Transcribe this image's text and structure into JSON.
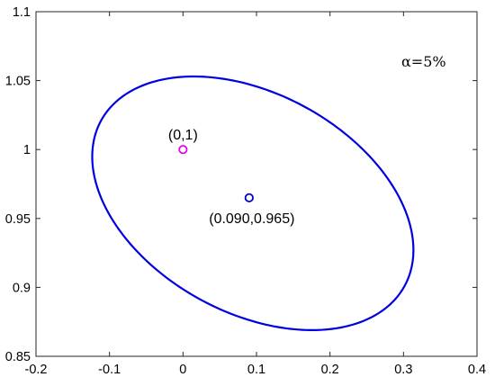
{
  "chart_data": {
    "type": "scatter",
    "title": "",
    "xlabel": "",
    "ylabel": "",
    "xlim": [
      -0.2,
      0.4
    ],
    "ylim": [
      0.85,
      1.1
    ],
    "x_ticks": [
      "-0.2",
      "-0.1",
      "0",
      "0.1",
      "0.2",
      "0.3",
      "0.4"
    ],
    "y_ticks": [
      "0.85",
      "0.9",
      "0.95",
      "1",
      "1.05",
      "1.1"
    ],
    "grid": false,
    "annotation_text": "α=5%",
    "points": [
      {
        "x": 0.0,
        "y": 1.0,
        "label": "(0,1)",
        "color": "#e800e8"
      },
      {
        "x": 0.09,
        "y": 0.965,
        "label": "(0.090,0.965)",
        "color": "#0000cc"
      }
    ],
    "confidence_ellipse": {
      "center": [
        0.095,
        0.961
      ],
      "x_extent": [
        -0.135,
        0.302
      ],
      "y_extent": [
        0.8735,
        1.0575
      ],
      "color": "#0000e0"
    }
  }
}
